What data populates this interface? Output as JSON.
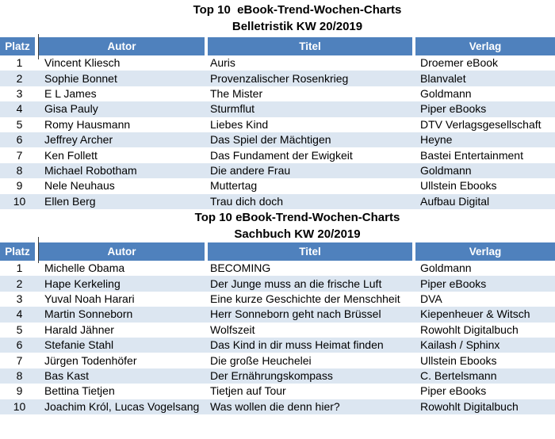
{
  "colors": {
    "header_bg": "#4f81bd",
    "header_text": "#ffffff",
    "row_alt_bg": "#dce6f1",
    "row_bg": "#ffffff",
    "text": "#000000"
  },
  "chart_data": [
    {
      "type": "table",
      "title": "Top 10  eBook-Trend-Wochen-Charts",
      "subtitle": "Belletristik KW 20/2019",
      "columns": [
        "Platz",
        "Autor",
        "Titel",
        "Verlag"
      ],
      "rows": [
        [
          "1",
          "Vincent Kliesch",
          "Auris",
          "Droemer eBook"
        ],
        [
          "2",
          "Sophie Bonnet",
          "Provenzalischer Rosenkrieg",
          "Blanvalet"
        ],
        [
          "3",
          "E L James",
          "The Mister",
          "Goldmann"
        ],
        [
          "4",
          "Gisa Pauly",
          "Sturmflut",
          "Piper eBooks"
        ],
        [
          "5",
          "Romy Hausmann",
          "Liebes Kind",
          "DTV Verlagsgesellschaft"
        ],
        [
          "6",
          "Jeffrey Archer",
          "Das Spiel der Mächtigen",
          "Heyne"
        ],
        [
          "7",
          "Ken Follett",
          "Das Fundament der Ewigkeit",
          "Bastei Entertainment"
        ],
        [
          "8",
          "Michael Robotham",
          "Die andere Frau",
          "Goldmann"
        ],
        [
          "9",
          "Nele Neuhaus",
          "Muttertag",
          "Ullstein Ebooks"
        ],
        [
          "10",
          "Ellen Berg",
          "Trau dich doch",
          "Aufbau Digital"
        ]
      ]
    },
    {
      "type": "table",
      "title": "Top 10 eBook-Trend-Wochen-Charts",
      "subtitle": "Sachbuch KW 20/2019",
      "columns": [
        "Platz",
        "Autor",
        "Titel",
        "Verlag"
      ],
      "rows": [
        [
          "1",
          "Michelle Obama",
          "BECOMING",
          "Goldmann"
        ],
        [
          "2",
          "Hape Kerkeling",
          "Der Junge muss an die frische Luft",
          "Piper eBooks"
        ],
        [
          "3",
          "Yuval Noah Harari",
          "Eine kurze Geschichte der Menschheit",
          "DVA"
        ],
        [
          "4",
          "Martin Sonneborn",
          "Herr Sonneborn geht nach Brüssel",
          "Kiepenheuer & Witsch"
        ],
        [
          "5",
          "Harald Jähner",
          "Wolfszeit",
          "Rowohlt Digitalbuch"
        ],
        [
          "6",
          "Stefanie Stahl",
          "Das Kind in dir muss Heimat finden",
          "Kailash / Sphinx"
        ],
        [
          "7",
          "Jürgen Todenhöfer",
          "Die große Heuchelei",
          "Ullstein Ebooks"
        ],
        [
          "8",
          "Bas Kast",
          "Der Ernährungskompass",
          "C. Bertelsmann"
        ],
        [
          "9",
          "Bettina Tietjen",
          "Tietjen auf Tour",
          "Piper eBooks"
        ],
        [
          "10",
          "Joachim Król, Lucas Vogelsang",
          "Was wollen die denn hier?",
          "Rowohlt Digitalbuch"
        ]
      ]
    }
  ]
}
